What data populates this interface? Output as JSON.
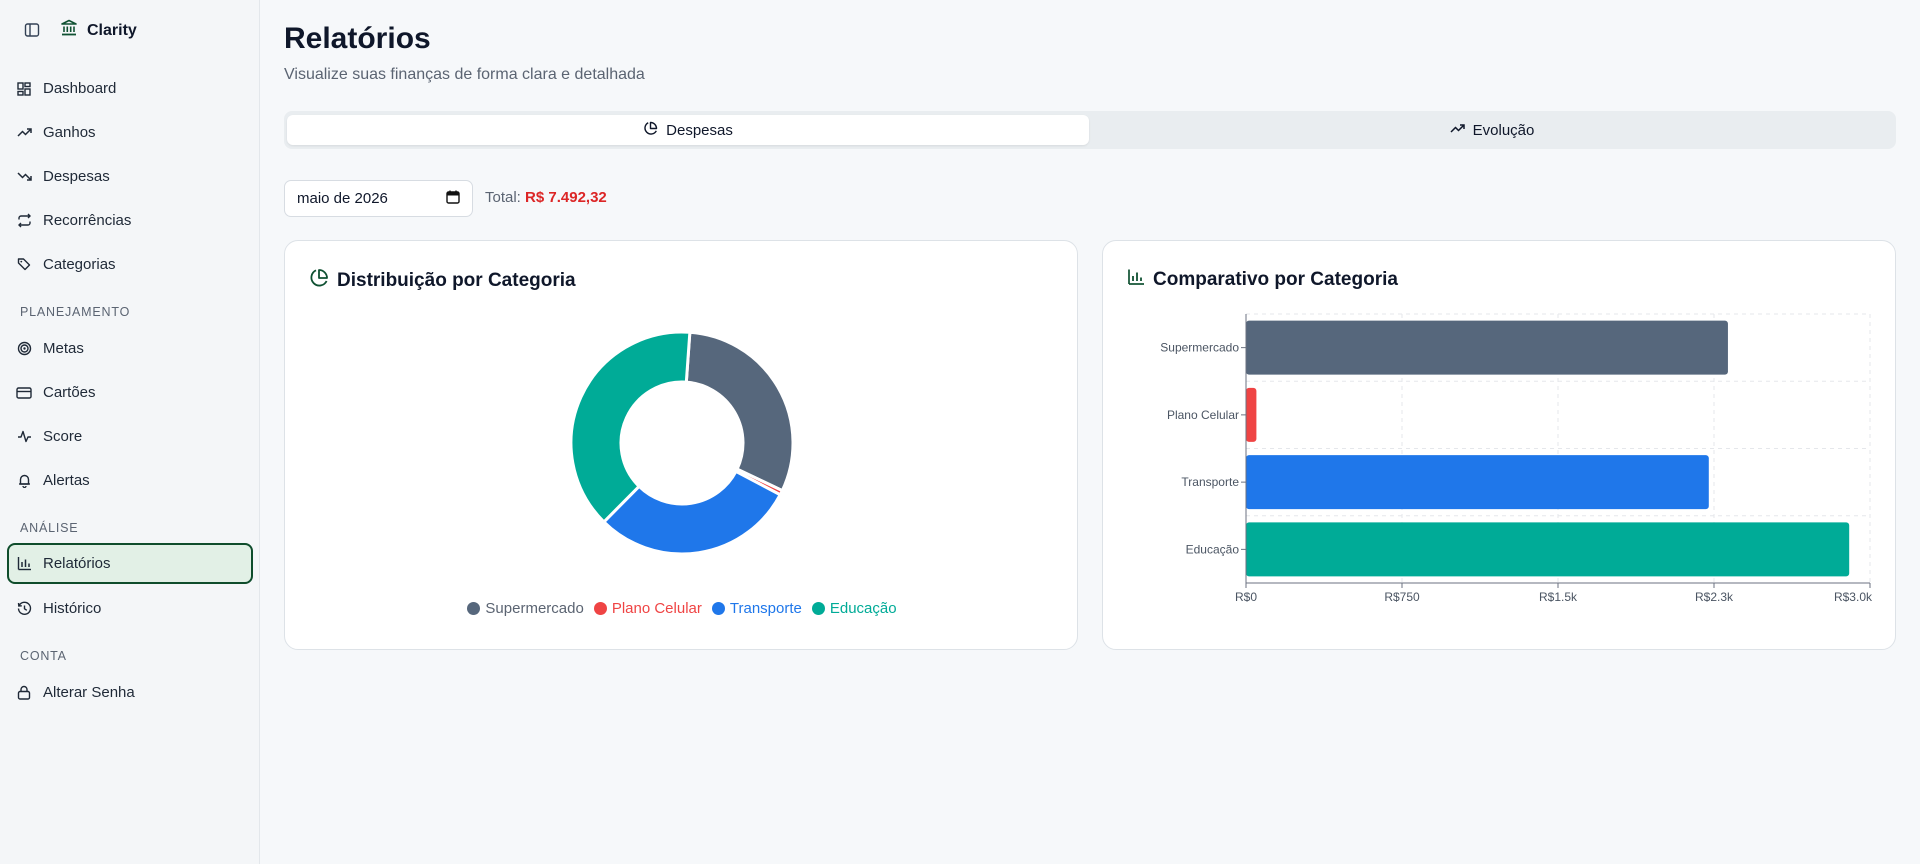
{
  "app": {
    "name": "Clarity"
  },
  "sidebar": {
    "items": [
      {
        "label": "Dashboard",
        "icon": "dashboard-icon"
      },
      {
        "label": "Ganhos",
        "icon": "trending-up-icon"
      },
      {
        "label": "Despesas",
        "icon": "trending-down-icon"
      },
      {
        "label": "Recorrências",
        "icon": "repeat-icon"
      },
      {
        "label": "Categorias",
        "icon": "tags-icon"
      }
    ],
    "sections": [
      {
        "title": "PLANEJAMENTO",
        "items": [
          {
            "label": "Metas",
            "icon": "target-icon"
          },
          {
            "label": "Cartões",
            "icon": "credit-card-icon"
          },
          {
            "label": "Score",
            "icon": "activity-icon"
          },
          {
            "label": "Alertas",
            "icon": "bell-icon"
          }
        ]
      },
      {
        "title": "ANÁLISE",
        "items": [
          {
            "label": "Relatórios",
            "icon": "bar-chart-icon",
            "active": true
          },
          {
            "label": "Histórico",
            "icon": "history-icon"
          }
        ]
      },
      {
        "title": "CONTA",
        "items": [
          {
            "label": "Alterar Senha",
            "icon": "lock-icon"
          }
        ]
      }
    ]
  },
  "header": {
    "title": "Relatórios",
    "subtitle": "Visualize suas finanças de forma clara e detalhada"
  },
  "tabs": [
    {
      "label": "Despesas",
      "icon": "pie-chart-icon",
      "active": true
    },
    {
      "label": "Evolução",
      "icon": "trending-up-icon",
      "active": false
    }
  ],
  "filters": {
    "month_value": "maio de 2026",
    "total_label": "Total:",
    "total_value": "R$ 7.492,32"
  },
  "colors": {
    "brand": "#0f5132",
    "accent": "#0f4d2c",
    "negative": "#dc2626"
  },
  "cards": {
    "distribution_title": "Distribuição por Categoria",
    "comparison_title": "Comparativo por Categoria"
  },
  "chart_data": [
    {
      "type": "pie",
      "title": "Distribuição por Categoria",
      "categories": [
        "Supermercado",
        "Plano Celular",
        "Transporte",
        "Educação"
      ],
      "values": [
        2317,
        50,
        2225,
        2900
      ],
      "colors": [
        "#56677c",
        "#ef4444",
        "#1f77ea",
        "#00ab97"
      ],
      "donut": true,
      "legend": "bottom"
    },
    {
      "type": "bar",
      "orientation": "horizontal",
      "title": "Comparativo por Categoria",
      "categories": [
        "Supermercado",
        "Plano Celular",
        "Transporte",
        "Educação"
      ],
      "values": [
        2317,
        50,
        2225,
        2900
      ],
      "colors": [
        "#56677c",
        "#ef4444",
        "#1f77ea",
        "#00ab97"
      ],
      "xlim": [
        0,
        3000
      ],
      "xticks": [
        0,
        750,
        1500,
        2250,
        3000
      ],
      "xtick_labels": [
        "R$0",
        "R$750",
        "R$1.5k",
        "R$2.3k",
        "R$3.0k"
      ],
      "grid": true
    }
  ]
}
